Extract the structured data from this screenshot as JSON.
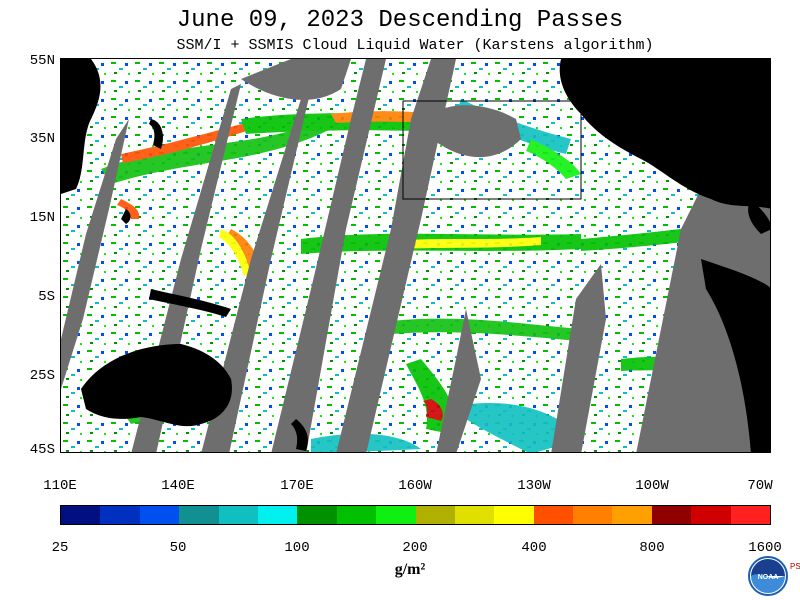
{
  "title": "June 09, 2023  Descending Passes",
  "subtitle": "SSM/I + SSMIS Cloud Liquid Water (Karstens algorithm)",
  "latitude_labels": [
    "55N",
    "35N",
    "15N",
    "5S",
    "25S",
    "45S"
  ],
  "longitude_labels": [
    "110E",
    "140E",
    "170E",
    "160W",
    "130W",
    "100W",
    "70W"
  ],
  "colorbar": {
    "colors": [
      "#001080",
      "#0030c0",
      "#0050f0",
      "#109090",
      "#10c0c0",
      "#00f0f0",
      "#009000",
      "#00c000",
      "#10f010",
      "#b0b000",
      "#e0e000",
      "#ffff00",
      "#ff5000",
      "#ff8000",
      "#ffa000",
      "#900000",
      "#d00000",
      "#ff2020"
    ],
    "tick_labels": [
      "25",
      "50",
      "100",
      "200",
      "400",
      "800",
      "1600"
    ]
  },
  "units": "g/m²",
  "logo": {
    "name": "NOAA",
    "side_text": "PSL"
  }
}
